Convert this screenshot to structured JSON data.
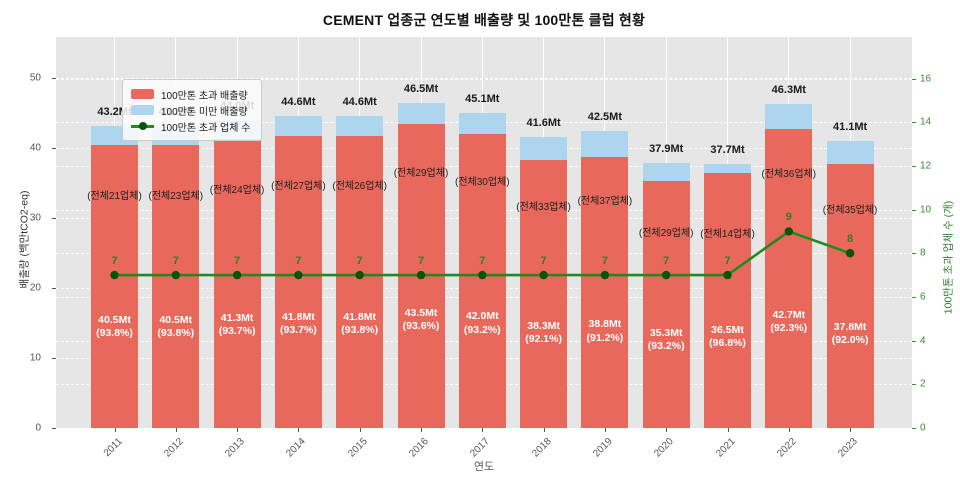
{
  "title": "CEMENT 업종군 연도별 배출량 및 100만톤 클럽 현황",
  "legend": {
    "items": [
      {
        "label": "100만톤 초과 배출량",
        "type": "patch",
        "color": "#e8695c"
      },
      {
        "label": "100만톤 미만 배출량",
        "type": "patch",
        "color": "#aed5ee"
      },
      {
        "label": "100만톤 초과 업체 수",
        "type": "line",
        "color": "#1f8a1f",
        "dot_color": "#0b520b"
      }
    ]
  },
  "axes": {
    "left": {
      "label": "배출량 (백만tCO2-eq)",
      "ticks": [
        0,
        10,
        20,
        30,
        40,
        50
      ],
      "max": 55.9,
      "color": "#555555"
    },
    "right": {
      "label": "100만톤 초과 업체 수 (개)",
      "ticks": [
        0,
        2,
        4,
        6,
        8,
        10,
        12,
        14,
        16
      ],
      "max": 17.9,
      "color": "#3a8a3a"
    },
    "x": {
      "label": "연도"
    }
  },
  "colors": {
    "plot_background": "#e6e6e6",
    "bar_exceed": "#e8695c",
    "bar_below": "#aed5ee",
    "line": "#1f8a1f",
    "line_dot": "#0b520b",
    "grid": "#ffffff"
  },
  "chart_data": {
    "type": "bar",
    "stacked": true,
    "title": "CEMENT 업종군 연도별 배출량 및 100만톤 클럽 현황",
    "xlabel": "연도",
    "ylabel": "배출량 (백만tCO2-eq)",
    "y2label": "100만톤 초과 업체 수 (개)",
    "ylim": [
      0,
      55.9
    ],
    "y2lim": [
      0,
      17.9
    ],
    "categories": [
      "2011",
      "2012",
      "2013",
      "2014",
      "2015",
      "2016",
      "2017",
      "2018",
      "2019",
      "2020",
      "2021",
      "2022",
      "2023"
    ],
    "series": [
      {
        "name": "100만톤 초과 배출량",
        "color": "#e8695c",
        "values": [
          40.5,
          40.5,
          41.3,
          41.8,
          41.8,
          43.5,
          42.0,
          38.3,
          38.8,
          35.3,
          36.5,
          42.7,
          37.8
        ]
      },
      {
        "name": "100만톤 미만 배출량",
        "color": "#aed5ee",
        "values": [
          2.7,
          2.7,
          2.7,
          2.8,
          2.8,
          3.0,
          3.1,
          3.3,
          3.7,
          2.6,
          1.2,
          3.6,
          3.3
        ]
      }
    ],
    "line_series": {
      "name": "100만톤 초과 업체 수",
      "axis": "right",
      "color": "#1f8a1f",
      "values": [
        7,
        7,
        7,
        7,
        7,
        7,
        7,
        7,
        7,
        7,
        7,
        9,
        8
      ]
    },
    "totals": [
      43.2,
      43.2,
      44.0,
      44.6,
      44.6,
      46.5,
      45.1,
      41.6,
      42.5,
      37.9,
      37.7,
      46.3,
      41.1
    ],
    "total_labels": [
      "43.2Mt",
      "43.2Mt",
      "44.0Mt",
      "44.6Mt",
      "44.6Mt",
      "46.5Mt",
      "45.1Mt",
      "41.6Mt",
      "42.5Mt",
      "37.9Mt",
      "37.7Mt",
      "46.3Mt",
      "41.1Mt"
    ],
    "company_labels": [
      "(전체21업체)",
      "(전체23업체)",
      "(전체24업체)",
      "(전체27업체)",
      "(전체26업체)",
      "(전체29업체)",
      "(전체30업체)",
      "(전체33업체)",
      "(전체37업체)",
      "(전체29업체)",
      "(전체14업체)",
      "(전체36업체)",
      "(전체35업체)"
    ],
    "inner_labels": [
      {
        "mt": "40.5Mt",
        "pct": "(93.8%)"
      },
      {
        "mt": "40.5Mt",
        "pct": "(93.8%)"
      },
      {
        "mt": "41.3Mt",
        "pct": "(93.7%)"
      },
      {
        "mt": "41.8Mt",
        "pct": "(93.7%)"
      },
      {
        "mt": "41.8Mt",
        "pct": "(93.8%)"
      },
      {
        "mt": "43.5Mt",
        "pct": "(93.6%)"
      },
      {
        "mt": "42.0Mt",
        "pct": "(93.2%)"
      },
      {
        "mt": "38.3Mt",
        "pct": "(92.1%)"
      },
      {
        "mt": "38.8Mt",
        "pct": "(91.2%)"
      },
      {
        "mt": "35.3Mt",
        "pct": "(93.2%)"
      },
      {
        "mt": "36.5Mt",
        "pct": "(96.8%)"
      },
      {
        "mt": "42.7Mt",
        "pct": "(92.3%)"
      },
      {
        "mt": "37.8Mt",
        "pct": "(92.0%)"
      }
    ],
    "line_value_labels": [
      "7",
      "7",
      "7",
      "7",
      "7",
      "7",
      "7",
      "7",
      "7",
      "7",
      "7",
      "9",
      "8"
    ]
  }
}
